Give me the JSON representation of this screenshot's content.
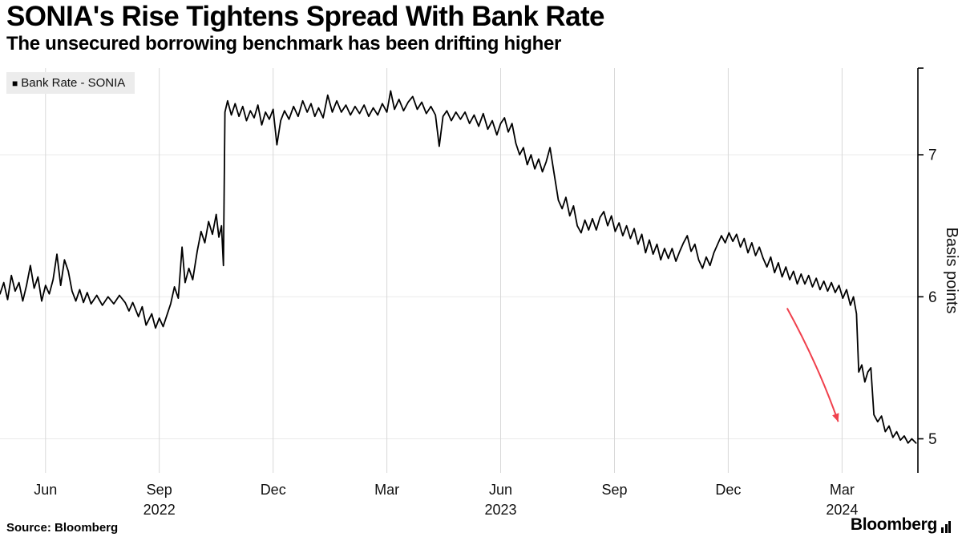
{
  "header": {
    "title": "SONIA's Rise Tightens Spread With Bank Rate",
    "subtitle": "The unsecured borrowing benchmark has been drifting higher"
  },
  "legend": {
    "swatch": "■",
    "label": "Bank Rate - SONIA",
    "background": "#ececec"
  },
  "footer": {
    "source": "Source: Bloomberg",
    "brand": "Bloomberg"
  },
  "chart_data": {
    "type": "line",
    "title": "SONIA's Rise Tightens Spread With Bank Rate",
    "subtitle": "The unsecured borrowing benchmark has been drifting higher",
    "xlabel": "",
    "ylabel": "Basis points",
    "x_unit": "months since May 2022",
    "xlim": [
      -0.2,
      24.0
    ],
    "ylim": [
      4.76,
      7.61
    ],
    "grid": true,
    "grid_color_vertical": "#d8d8d8",
    "grid_color_horizontal": "#e9e9e9",
    "axis_color": "#000000",
    "y_ticks": [
      5,
      6,
      7
    ],
    "x_ticks": [
      {
        "t": 1,
        "label": "Jun"
      },
      {
        "t": 4,
        "label": "Sep"
      },
      {
        "t": 7,
        "label": "Dec"
      },
      {
        "t": 10,
        "label": "Mar"
      },
      {
        "t": 13,
        "label": "Jun"
      },
      {
        "t": 16,
        "label": "Sep"
      },
      {
        "t": 19,
        "label": "Dec"
      },
      {
        "t": 22,
        "label": "Mar"
      }
    ],
    "year_ticks": [
      {
        "t": 4,
        "label": "2022"
      },
      {
        "t": 13,
        "label": "2023"
      },
      {
        "t": 22,
        "label": "2024"
      }
    ],
    "legend_position": "top-left",
    "annotation": {
      "type": "arrow",
      "from": [
        20.55,
        5.92
      ],
      "to": [
        21.9,
        5.12
      ],
      "color": "#f0414d"
    },
    "series": [
      {
        "name": "Bank Rate - SONIA",
        "color": "#000000",
        "points": [
          [
            -0.2,
            6.02
          ],
          [
            -0.1,
            6.1
          ],
          [
            0,
            5.98
          ],
          [
            0.1,
            6.15
          ],
          [
            0.2,
            6.04
          ],
          [
            0.3,
            6.1
          ],
          [
            0.4,
            5.97
          ],
          [
            0.5,
            6.08
          ],
          [
            0.6,
            6.22
          ],
          [
            0.7,
            6.06
          ],
          [
            0.8,
            6.14
          ],
          [
            0.9,
            5.97
          ],
          [
            1.0,
            6.08
          ],
          [
            1.1,
            6.02
          ],
          [
            1.2,
            6.12
          ],
          [
            1.3,
            6.3
          ],
          [
            1.4,
            6.08
          ],
          [
            1.5,
            6.26
          ],
          [
            1.6,
            6.18
          ],
          [
            1.7,
            6.04
          ],
          [
            1.8,
            5.97
          ],
          [
            1.9,
            6.05
          ],
          [
            2.0,
            5.96
          ],
          [
            2.1,
            6.03
          ],
          [
            2.2,
            5.95
          ],
          [
            2.35,
            6.01
          ],
          [
            2.5,
            5.94
          ],
          [
            2.65,
            6.0
          ],
          [
            2.8,
            5.95
          ],
          [
            2.95,
            6.01
          ],
          [
            3.1,
            5.96
          ],
          [
            3.2,
            5.9
          ],
          [
            3.3,
            5.96
          ],
          [
            3.45,
            5.86
          ],
          [
            3.55,
            5.93
          ],
          [
            3.65,
            5.8
          ],
          [
            3.8,
            5.88
          ],
          [
            3.9,
            5.78
          ],
          [
            4.0,
            5.85
          ],
          [
            4.1,
            5.79
          ],
          [
            4.2,
            5.87
          ],
          [
            4.3,
            5.95
          ],
          [
            4.4,
            6.07
          ],
          [
            4.5,
            5.99
          ],
          [
            4.6,
            6.35
          ],
          [
            4.68,
            6.1
          ],
          [
            4.78,
            6.2
          ],
          [
            4.88,
            6.12
          ],
          [
            5.0,
            6.32
          ],
          [
            5.1,
            6.46
          ],
          [
            5.2,
            6.38
          ],
          [
            5.3,
            6.53
          ],
          [
            5.4,
            6.44
          ],
          [
            5.5,
            6.58
          ],
          [
            5.57,
            6.42
          ],
          [
            5.64,
            6.5
          ],
          [
            5.69,
            6.22
          ],
          [
            5.73,
            7.3
          ],
          [
            5.8,
            7.38
          ],
          [
            5.9,
            7.28
          ],
          [
            6.0,
            7.36
          ],
          [
            6.1,
            7.27
          ],
          [
            6.2,
            7.34
          ],
          [
            6.3,
            7.24
          ],
          [
            6.4,
            7.31
          ],
          [
            6.5,
            7.26
          ],
          [
            6.6,
            7.35
          ],
          [
            6.7,
            7.21
          ],
          [
            6.8,
            7.3
          ],
          [
            6.9,
            7.25
          ],
          [
            7.0,
            7.32
          ],
          [
            7.1,
            7.07
          ],
          [
            7.2,
            7.24
          ],
          [
            7.3,
            7.31
          ],
          [
            7.42,
            7.25
          ],
          [
            7.54,
            7.34
          ],
          [
            7.66,
            7.27
          ],
          [
            7.78,
            7.38
          ],
          [
            7.9,
            7.3
          ],
          [
            8.0,
            7.36
          ],
          [
            8.1,
            7.27
          ],
          [
            8.2,
            7.33
          ],
          [
            8.32,
            7.26
          ],
          [
            8.44,
            7.42
          ],
          [
            8.56,
            7.3
          ],
          [
            8.68,
            7.38
          ],
          [
            8.8,
            7.3
          ],
          [
            8.92,
            7.35
          ],
          [
            9.04,
            7.28
          ],
          [
            9.16,
            7.34
          ],
          [
            9.28,
            7.29
          ],
          [
            9.4,
            7.35
          ],
          [
            9.52,
            7.27
          ],
          [
            9.64,
            7.33
          ],
          [
            9.76,
            7.28
          ],
          [
            9.88,
            7.36
          ],
          [
            10.0,
            7.3
          ],
          [
            10.1,
            7.45
          ],
          [
            10.2,
            7.32
          ],
          [
            10.32,
            7.39
          ],
          [
            10.44,
            7.31
          ],
          [
            10.56,
            7.37
          ],
          [
            10.68,
            7.41
          ],
          [
            10.8,
            7.32
          ],
          [
            10.92,
            7.37
          ],
          [
            11.04,
            7.29
          ],
          [
            11.16,
            7.34
          ],
          [
            11.28,
            7.28
          ],
          [
            11.38,
            7.06
          ],
          [
            11.48,
            7.27
          ],
          [
            11.58,
            7.31
          ],
          [
            11.7,
            7.24
          ],
          [
            11.82,
            7.3
          ],
          [
            11.94,
            7.25
          ],
          [
            12.06,
            7.3
          ],
          [
            12.18,
            7.22
          ],
          [
            12.3,
            7.28
          ],
          [
            12.42,
            7.2
          ],
          [
            12.54,
            7.29
          ],
          [
            12.66,
            7.18
          ],
          [
            12.78,
            7.24
          ],
          [
            12.9,
            7.14
          ],
          [
            13.0,
            7.22
          ],
          [
            13.1,
            7.26
          ],
          [
            13.2,
            7.16
          ],
          [
            13.3,
            7.22
          ],
          [
            13.4,
            7.08
          ],
          [
            13.5,
            7.0
          ],
          [
            13.6,
            7.05
          ],
          [
            13.7,
            6.93
          ],
          [
            13.8,
            7.0
          ],
          [
            13.9,
            6.9
          ],
          [
            14.0,
            6.97
          ],
          [
            14.1,
            6.88
          ],
          [
            14.2,
            6.95
          ],
          [
            14.3,
            7.05
          ],
          [
            14.42,
            6.85
          ],
          [
            14.52,
            6.68
          ],
          [
            14.62,
            6.62
          ],
          [
            14.72,
            6.7
          ],
          [
            14.82,
            6.57
          ],
          [
            14.92,
            6.64
          ],
          [
            15.02,
            6.5
          ],
          [
            15.12,
            6.45
          ],
          [
            15.22,
            6.54
          ],
          [
            15.32,
            6.47
          ],
          [
            15.42,
            6.55
          ],
          [
            15.52,
            6.47
          ],
          [
            15.62,
            6.56
          ],
          [
            15.72,
            6.6
          ],
          [
            15.82,
            6.5
          ],
          [
            15.92,
            6.57
          ],
          [
            16.02,
            6.46
          ],
          [
            16.12,
            6.52
          ],
          [
            16.22,
            6.43
          ],
          [
            16.32,
            6.5
          ],
          [
            16.42,
            6.41
          ],
          [
            16.52,
            6.48
          ],
          [
            16.62,
            6.37
          ],
          [
            16.72,
            6.44
          ],
          [
            16.82,
            6.31
          ],
          [
            16.92,
            6.4
          ],
          [
            17.02,
            6.3
          ],
          [
            17.12,
            6.37
          ],
          [
            17.22,
            6.26
          ],
          [
            17.32,
            6.34
          ],
          [
            17.42,
            6.27
          ],
          [
            17.52,
            6.34
          ],
          [
            17.62,
            6.25
          ],
          [
            17.72,
            6.32
          ],
          [
            17.82,
            6.38
          ],
          [
            17.92,
            6.43
          ],
          [
            18.02,
            6.32
          ],
          [
            18.12,
            6.37
          ],
          [
            18.22,
            6.26
          ],
          [
            18.32,
            6.2
          ],
          [
            18.42,
            6.28
          ],
          [
            18.52,
            6.22
          ],
          [
            18.62,
            6.31
          ],
          [
            18.72,
            6.37
          ],
          [
            18.82,
            6.43
          ],
          [
            18.92,
            6.38
          ],
          [
            19.02,
            6.45
          ],
          [
            19.12,
            6.39
          ],
          [
            19.22,
            6.44
          ],
          [
            19.32,
            6.35
          ],
          [
            19.42,
            6.41
          ],
          [
            19.52,
            6.31
          ],
          [
            19.62,
            6.38
          ],
          [
            19.72,
            6.29
          ],
          [
            19.82,
            6.35
          ],
          [
            19.92,
            6.27
          ],
          [
            20.02,
            6.21
          ],
          [
            20.12,
            6.28
          ],
          [
            20.22,
            6.17
          ],
          [
            20.32,
            6.24
          ],
          [
            20.42,
            6.14
          ],
          [
            20.52,
            6.21
          ],
          [
            20.62,
            6.12
          ],
          [
            20.72,
            6.18
          ],
          [
            20.82,
            6.09
          ],
          [
            20.92,
            6.16
          ],
          [
            21.02,
            6.09
          ],
          [
            21.12,
            6.15
          ],
          [
            21.22,
            6.07
          ],
          [
            21.32,
            6.13
          ],
          [
            21.42,
            6.05
          ],
          [
            21.52,
            6.11
          ],
          [
            21.62,
            6.04
          ],
          [
            21.72,
            6.1
          ],
          [
            21.82,
            6.03
          ],
          [
            21.92,
            6.08
          ],
          [
            22.02,
            5.99
          ],
          [
            22.12,
            6.05
          ],
          [
            22.22,
            5.94
          ],
          [
            22.3,
            6.0
          ],
          [
            22.38,
            5.88
          ],
          [
            22.44,
            5.47
          ],
          [
            22.52,
            5.52
          ],
          [
            22.6,
            5.4
          ],
          [
            22.68,
            5.47
          ],
          [
            22.76,
            5.5
          ],
          [
            22.84,
            5.17
          ],
          [
            22.94,
            5.12
          ],
          [
            23.04,
            5.16
          ],
          [
            23.14,
            5.05
          ],
          [
            23.24,
            5.09
          ],
          [
            23.34,
            5.01
          ],
          [
            23.44,
            5.05
          ],
          [
            23.54,
            4.99
          ],
          [
            23.64,
            5.02
          ],
          [
            23.74,
            4.97
          ],
          [
            23.84,
            5.0
          ],
          [
            23.95,
            4.97
          ]
        ]
      }
    ]
  }
}
